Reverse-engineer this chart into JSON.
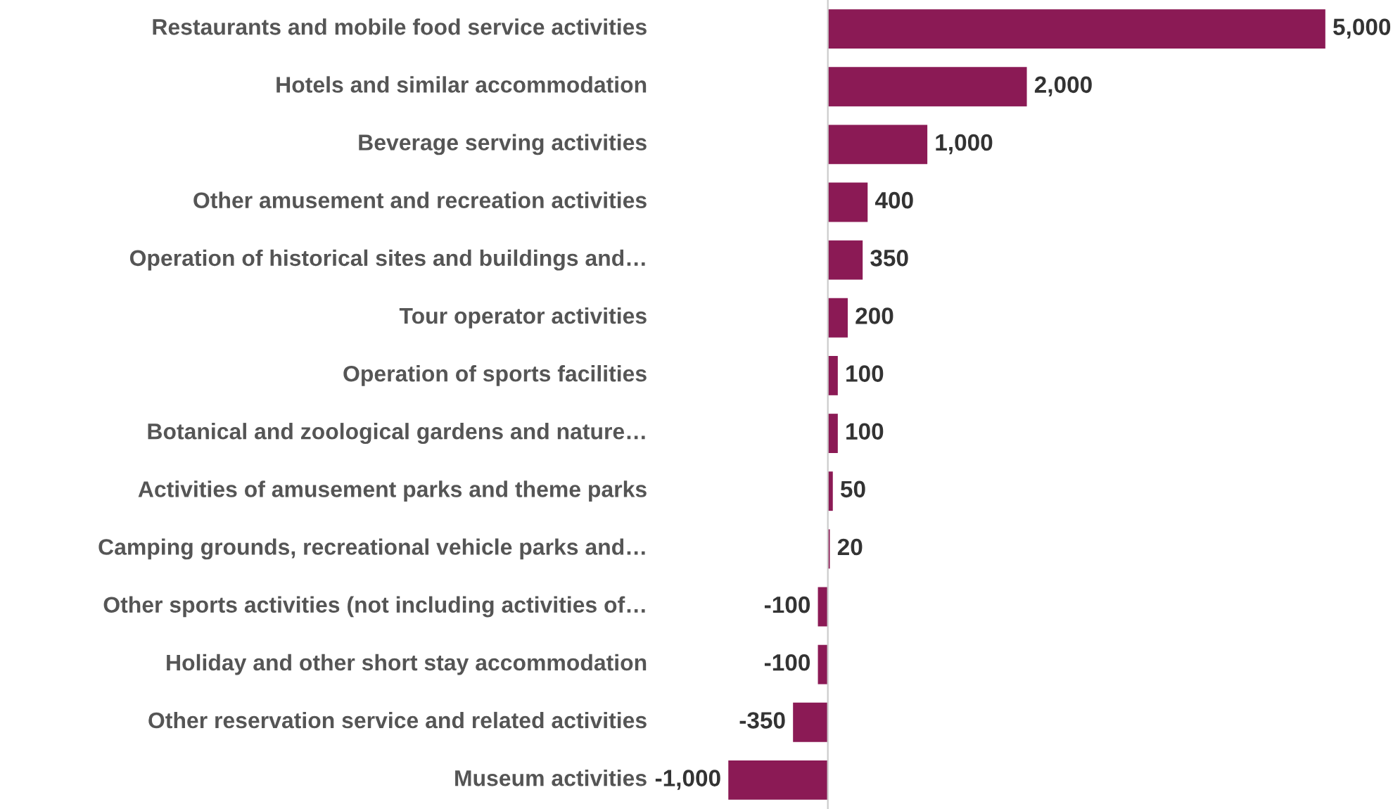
{
  "chart_data": {
    "type": "bar",
    "orientation": "horizontal",
    "tick_labels": "y",
    "categories": [
      "Restaurants and mobile food service activities",
      "Hotels and similar accommodation",
      "Beverage serving activities",
      "Other amusement and recreation activities",
      "Operation of historical sites and buildings and…",
      "Tour operator activities",
      "Operation of sports facilities",
      "Botanical and zoological gardens and nature…",
      "Activities of amusement parks and theme parks",
      "Camping grounds, recreational vehicle parks and…",
      "Other sports activities (not including activities of…",
      "Holiday and other short stay accommodation",
      "Other reservation service and related activities",
      "Museum activities"
    ],
    "values": [
      5000,
      2000,
      1000,
      400,
      350,
      200,
      100,
      100,
      50,
      20,
      -100,
      -100,
      -350,
      -1000
    ],
    "value_labels": [
      "5,000",
      "2,000",
      "1,000",
      "400",
      "350",
      "200",
      "100",
      "100",
      "50",
      "20",
      "-100",
      "-100",
      "-350",
      "-1,000"
    ],
    "color": "#8b1a55"
  }
}
